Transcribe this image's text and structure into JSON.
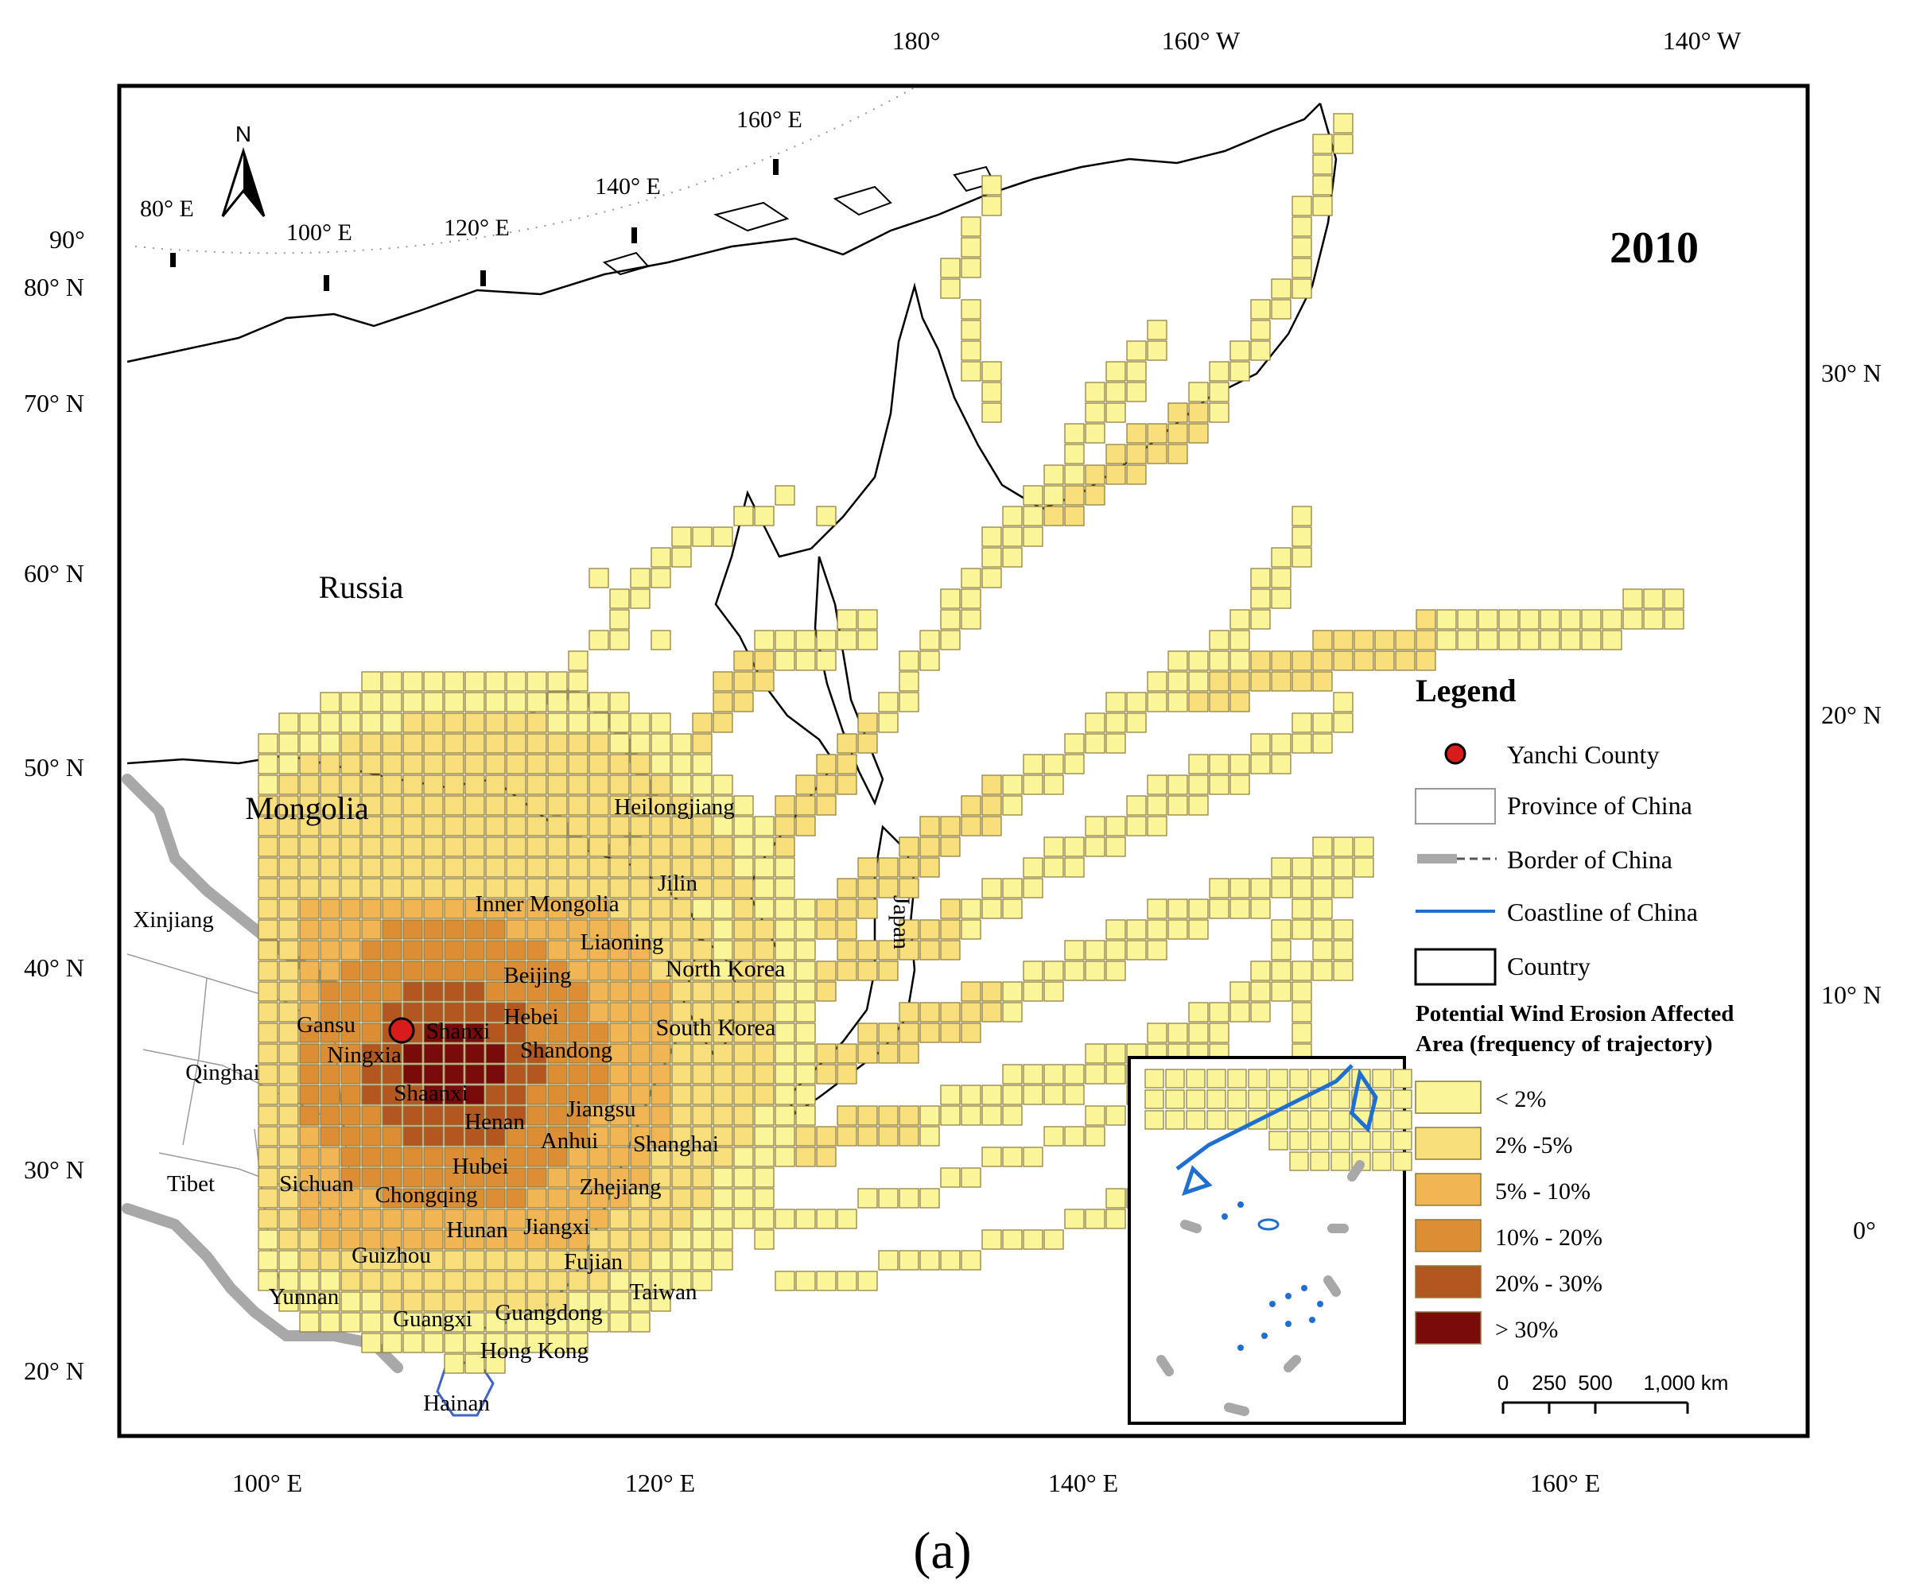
{
  "map": {
    "year": "2010",
    "caption": "(a)",
    "north_arrow_label": "N",
    "top_labels": [
      "180°",
      "160° W",
      "140° W"
    ],
    "left_labels": [
      "90°",
      "80° N",
      "70° N",
      "60° N",
      "50° N",
      "40° N",
      "30° N",
      "20° N"
    ],
    "right_labels": [
      "30° N",
      "20° N",
      "10° N",
      "0°"
    ],
    "bottom_labels": [
      "100° E",
      "120° E",
      "140° E",
      "160° E"
    ],
    "graticule_labels": [
      "80° E",
      "100° E",
      "120° E",
      "140° E",
      "160° E"
    ],
    "country_labels": [
      "Russia",
      "Mongolia",
      "Japan",
      "North Korea",
      "South Korea"
    ],
    "province_labels": [
      "Xinjiang",
      "Qinghai",
      "Tibet",
      "Gansu",
      "Ningxia",
      "Shanxi",
      "Shaanxi",
      "Inner Mongolia",
      "Heilongjiang",
      "Jilin",
      "Liaoning",
      "Beijing",
      "Hebei",
      "Shandong",
      "Henan",
      "Jiangsu",
      "Anhui",
      "Shanghai",
      "Hubei",
      "Sichuan",
      "Chongqing",
      "Zhejiang",
      "Hunan",
      "Jiangxi",
      "Guizhou",
      "Fujian",
      "Yunnan",
      "Guangxi",
      "Guangdong",
      "Taiwan",
      "Hong Kong",
      "Hainan"
    ],
    "colors": {
      "lt2": "#fbf59a",
      "c2_5": "#f9df7c",
      "c5_10": "#f1b653",
      "c10_20": "#dd8e35",
      "c20_30": "#b3561f",
      "gt30": "#7a0b0b",
      "china_border": "#a8a8a8",
      "coastline": "#1f6fd1",
      "marker": "#d81c1c"
    }
  },
  "legend": {
    "title": "Legend",
    "items": [
      "Yanchi County",
      "Province of China",
      "Border of China",
      "Coastline of China",
      "Country"
    ],
    "subtitle_line1": "Potential Wind Erosion Affected",
    "subtitle_line2": "Area (frequency of trajectory)",
    "classes": [
      "< 2%",
      "2% -5%",
      "5% - 10%",
      "10% - 20%",
      "20% - 30%",
      "> 30%"
    ],
    "scale_labels": [
      "0",
      "250",
      "500",
      "1,000 km"
    ]
  }
}
